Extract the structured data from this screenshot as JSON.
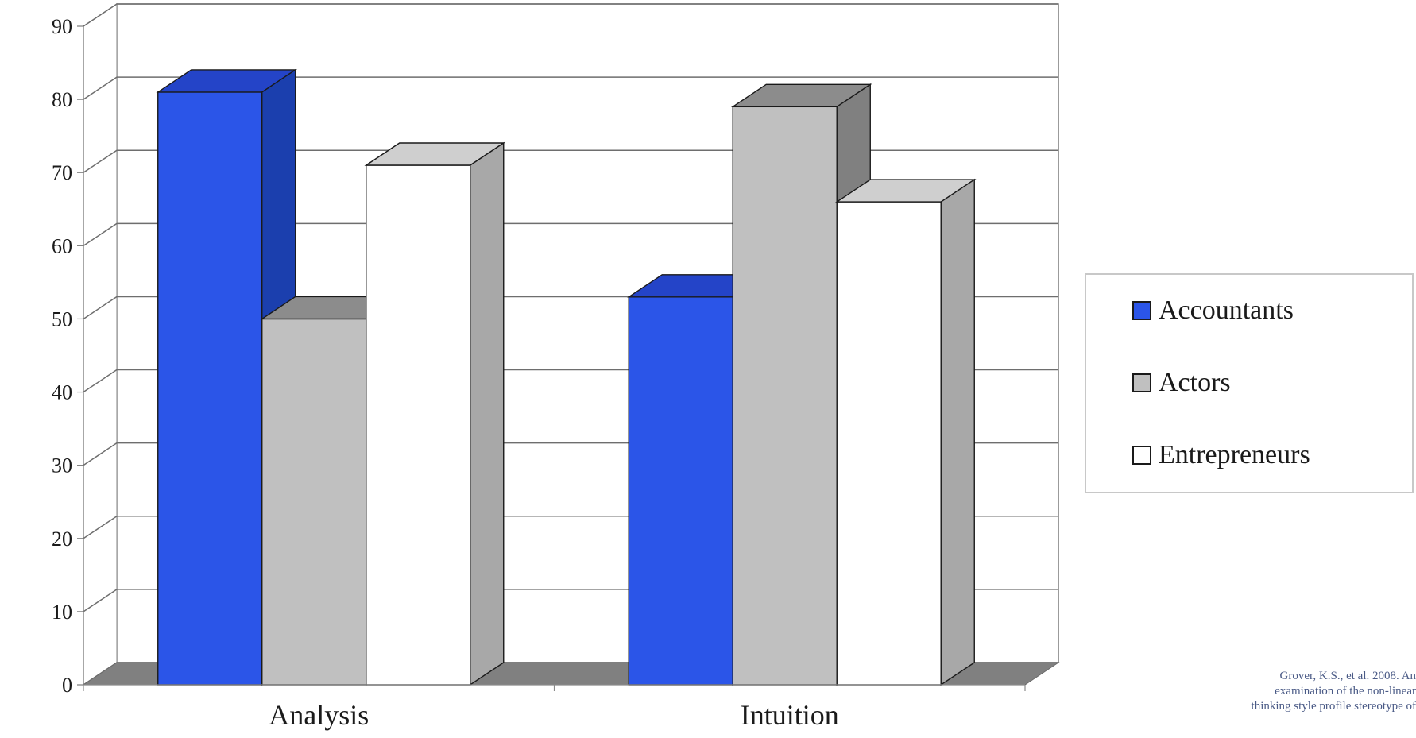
{
  "chart_data": {
    "type": "bar",
    "title": "",
    "xlabel": "",
    "ylabel": "",
    "categories": [
      "Analysis",
      "Intuition"
    ],
    "series": [
      {
        "name": "Accountants",
        "values": [
          81,
          53
        ],
        "color": "#2b55e8",
        "side_color": "#1b3fae",
        "top_color": "#2444c8"
      },
      {
        "name": "Actors",
        "values": [
          50,
          79
        ],
        "color": "#c0c0c0",
        "side_color": "#808080",
        "top_color": "#8c8c8c"
      },
      {
        "name": "Entrepreneurs",
        "values": [
          71,
          66
        ],
        "color": "#ffffff",
        "side_color": "#a8a8a8",
        "top_color": "#cfcfcf"
      }
    ],
    "ylim": [
      0,
      90
    ],
    "yticks": [
      "0",
      "10",
      "20",
      "30",
      "40",
      "50",
      "60",
      "70",
      "80",
      "90"
    ],
    "grid": true,
    "three_d": true,
    "legend_position": "right"
  },
  "citation": "Grover, K.S., et al.  2008.  An\nexamination of the non-linear\nthinking style profile stereotype of"
}
